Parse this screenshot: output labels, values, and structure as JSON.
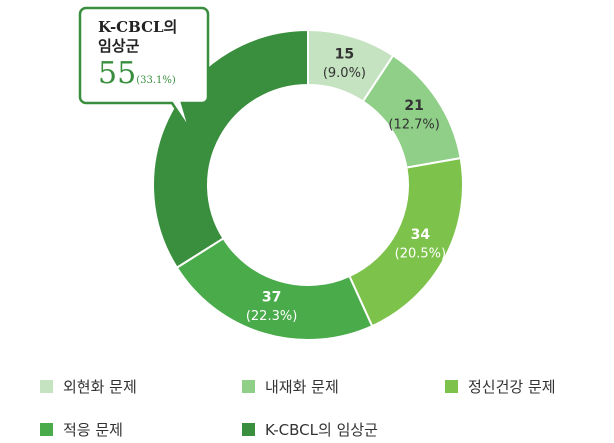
{
  "chart_data": {
    "type": "donut",
    "categories": [
      "외현화 문제",
      "내재화 문제",
      "정신건강 문제",
      "적응 문제",
      "K-CBCL의 임상군"
    ],
    "values": [
      15,
      21,
      34,
      37,
      55
    ],
    "percent_labels": [
      "(9.0%)",
      "(12.7%)",
      "(20.5%)",
      "(22.3%)",
      "(33.1%)"
    ],
    "colors": [
      "#c5e3c0",
      "#8fcf87",
      "#7dc24b",
      "#49ab4a",
      "#3a8f3e"
    ],
    "legend": "bottom"
  }
}
